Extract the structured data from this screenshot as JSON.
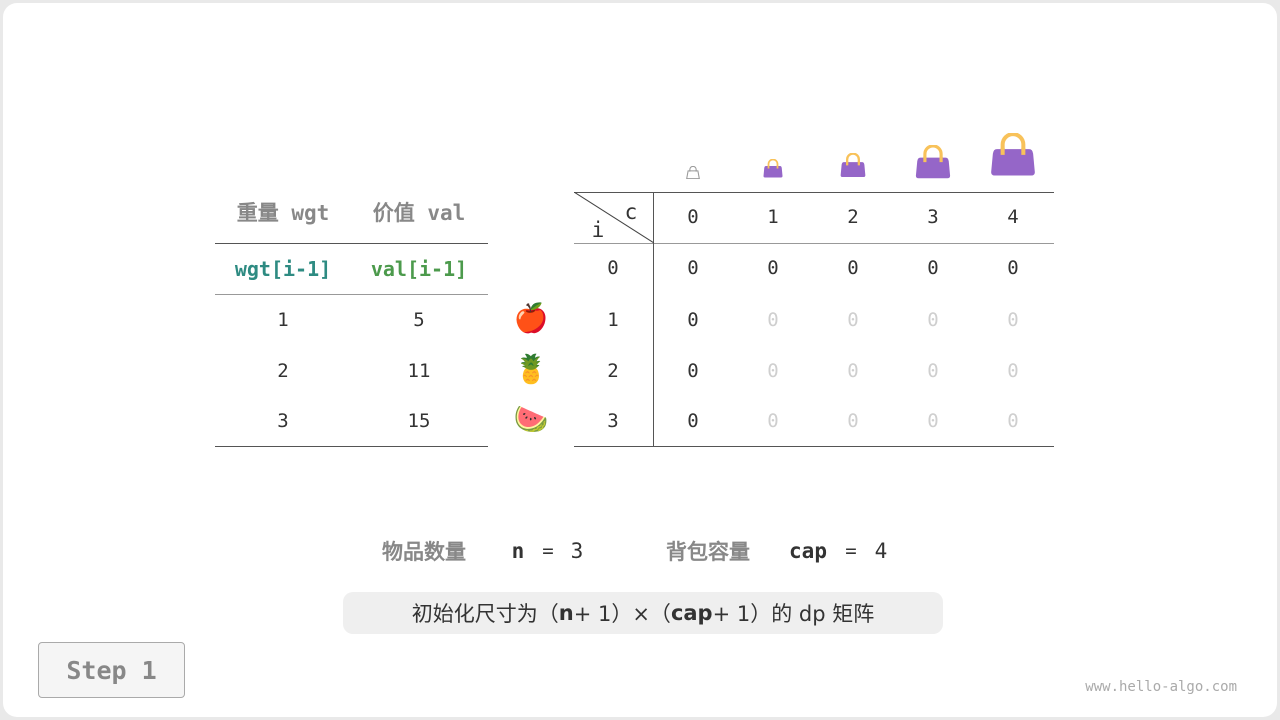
{
  "left_table": {
    "headers": [
      "重量 wgt",
      "价值 val"
    ],
    "subheaders": [
      "wgt[i-1]",
      "val[i-1]"
    ],
    "rows": [
      [
        "1",
        "5"
      ],
      [
        "2",
        "11"
      ],
      [
        "3",
        "15"
      ]
    ],
    "items": [
      "apple-icon",
      "pineapple-icon",
      "watermelon-icon"
    ],
    "item_glyphs": [
      "🍎",
      "🍍",
      "🍉"
    ]
  },
  "dp_table": {
    "corner_i": "i",
    "corner_c": "c",
    "col_headers": [
      "0",
      "1",
      "2",
      "3",
      "4"
    ],
    "row_headers": [
      "0",
      "1",
      "2",
      "3"
    ],
    "cells": [
      [
        "0",
        "0",
        "0",
        "0",
        "0"
      ],
      [
        "0",
        "0",
        "0",
        "0",
        "0"
      ],
      [
        "0",
        "0",
        "0",
        "0",
        "0"
      ],
      [
        "0",
        "0",
        "0",
        "0",
        "0"
      ]
    ],
    "initialized_mask": [
      [
        1,
        1,
        1,
        1,
        1
      ],
      [
        1,
        0,
        0,
        0,
        0
      ],
      [
        1,
        0,
        0,
        0,
        0
      ],
      [
        1,
        0,
        0,
        0,
        0
      ]
    ]
  },
  "summary": {
    "n_label": "物品数量",
    "n_var": "n",
    "n_eq": "=",
    "n_val": "3",
    "cap_label": "背包容量",
    "cap_var": "cap",
    "cap_eq": "=",
    "cap_val": "4"
  },
  "note": {
    "p1": "初始化尺寸为（",
    "n": "n",
    "p2": " + 1）×（",
    "cap": "cap",
    "p3": " + 1）的 dp 矩阵"
  },
  "step_label": "Step 1",
  "watermark": "www.hello-algo.com",
  "colors": {
    "wgt": "#2e8b82",
    "val": "#4c9a4c",
    "bag": "#9566c8",
    "handle": "#f8c25a",
    "faded": "#cfcfcf"
  }
}
